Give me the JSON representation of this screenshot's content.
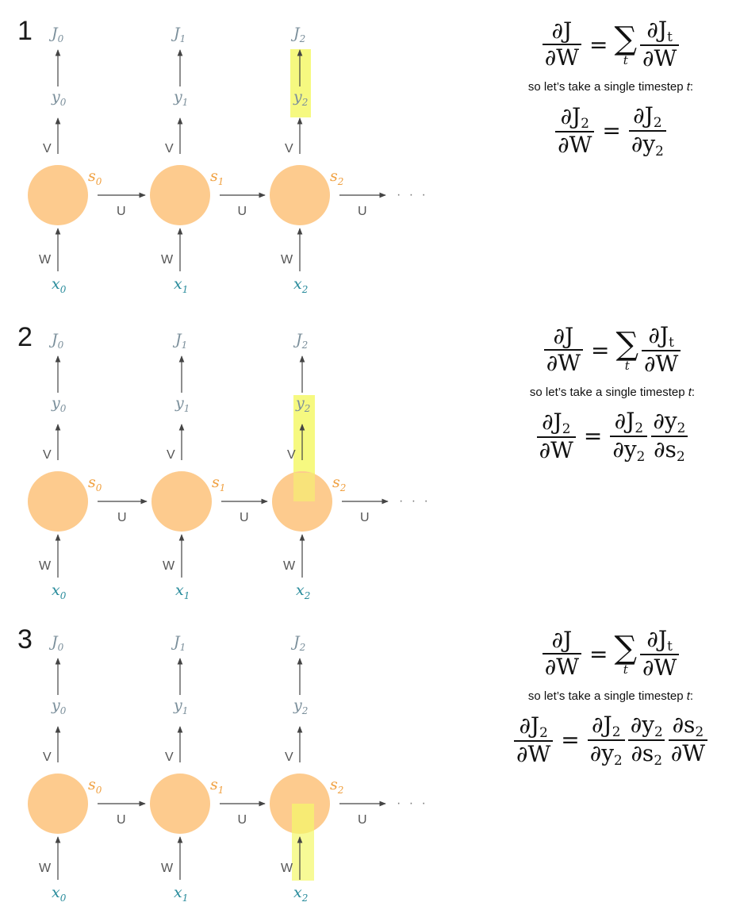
{
  "panels": [
    {
      "number": "1",
      "highlight": "y2",
      "formula_main": {
        "lhs_num": "∂J",
        "lhs_den": "∂W",
        "sum_symbol": "∑",
        "sum_index": "t",
        "rhs_num": "∂J",
        "rhs_num_sub": "t",
        "rhs_den": "∂W"
      },
      "caption": "so let’s take a single timestep",
      "caption_var": "t",
      "caption_end": ":",
      "chain_terms": 1
    },
    {
      "number": "2",
      "highlight": "y2-s2",
      "formula_main": {
        "lhs_num": "∂J",
        "lhs_den": "∂W",
        "sum_symbol": "∑",
        "sum_index": "t",
        "rhs_num": "∂J",
        "rhs_num_sub": "t",
        "rhs_den": "∂W"
      },
      "caption": "so let’s take a single timestep",
      "caption_var": "t",
      "caption_end": ":",
      "chain_terms": 2
    },
    {
      "number": "3",
      "highlight": "s2-w",
      "formula_main": {
        "lhs_num": "∂J",
        "lhs_den": "∂W",
        "sum_symbol": "∑",
        "sum_index": "t",
        "rhs_num": "∂J",
        "rhs_num_sub": "t",
        "rhs_den": "∂W"
      },
      "caption": "so let’s take a single timestep",
      "caption_var": "t",
      "caption_end": ":",
      "chain_terms": 3
    }
  ],
  "nodes": [
    {
      "J": "J",
      "y": "y",
      "s": "s",
      "x": "x",
      "sub": "0"
    },
    {
      "J": "J",
      "y": "y",
      "s": "s",
      "x": "x",
      "sub": "1"
    },
    {
      "J": "J",
      "y": "y",
      "s": "s",
      "x": "x",
      "sub": "2"
    }
  ],
  "edge_labels": {
    "output": "V",
    "recurrent": "U",
    "input": "W"
  },
  "ellipsis": "· · ·",
  "chain_lhs": {
    "num": "∂J",
    "num_sub": "2",
    "den": "∂W"
  },
  "chain_factors": [
    {
      "num": "∂J",
      "num_sub": "2",
      "den": "∂y",
      "den_sub": "2"
    },
    {
      "num": "∂y",
      "num_sub": "2",
      "den": "∂s",
      "den_sub": "2"
    },
    {
      "num": "∂s",
      "num_sub": "2",
      "den": "∂W",
      "den_sub": ""
    }
  ],
  "colors": {
    "node_fill": "#fdcb8e",
    "highlight": "#f4f86a",
    "J_y_label": "#7b8f9b",
    "x_label": "#2a8c9c",
    "s_label": "#f0a040",
    "arrow": "#444444"
  }
}
